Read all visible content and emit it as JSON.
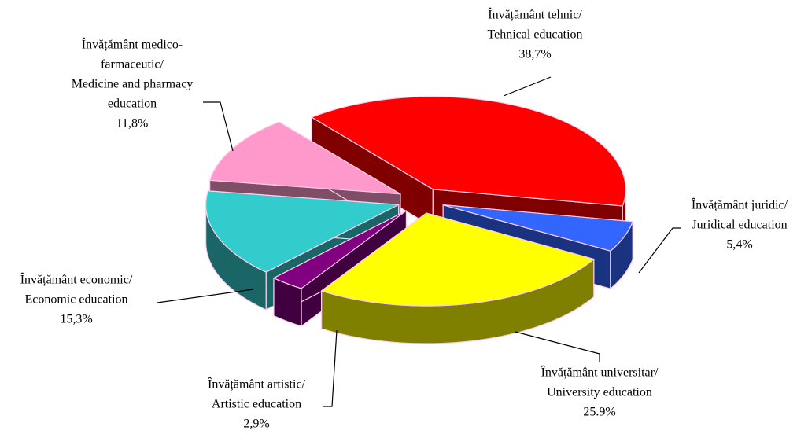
{
  "chart_data": {
    "type": "pie3d",
    "categories": [
      [
        "Învățământ tehnic/",
        "Tehnical education"
      ],
      [
        "Învățământ juridic/",
        "Juridical education"
      ],
      [
        "Învățământ universitar/",
        "University education"
      ],
      [
        "Învățământ artistic/",
        "Artistic education"
      ],
      [
        "Învățământ economic/",
        "Economic education"
      ],
      [
        "Învățământ medico-",
        "farmaceutic/",
        "Medicine and pharmacy",
        "education"
      ]
    ],
    "values": [
      38.7,
      5.4,
      25.9,
      2.9,
      15.3,
      11.8
    ],
    "value_labels": [
      "38,7%",
      "5,4%",
      "25.9%",
      "2,9%",
      "15,3%",
      "11,8%"
    ],
    "colors": [
      "#ff0000",
      "#3366ff",
      "#ffff00",
      "#800080",
      "#33cccc",
      "#ff99cc"
    ],
    "side_colors": [
      "#800000",
      "#1a3380",
      "#808000",
      "#400040",
      "#1a6666",
      "#804d66"
    ]
  }
}
